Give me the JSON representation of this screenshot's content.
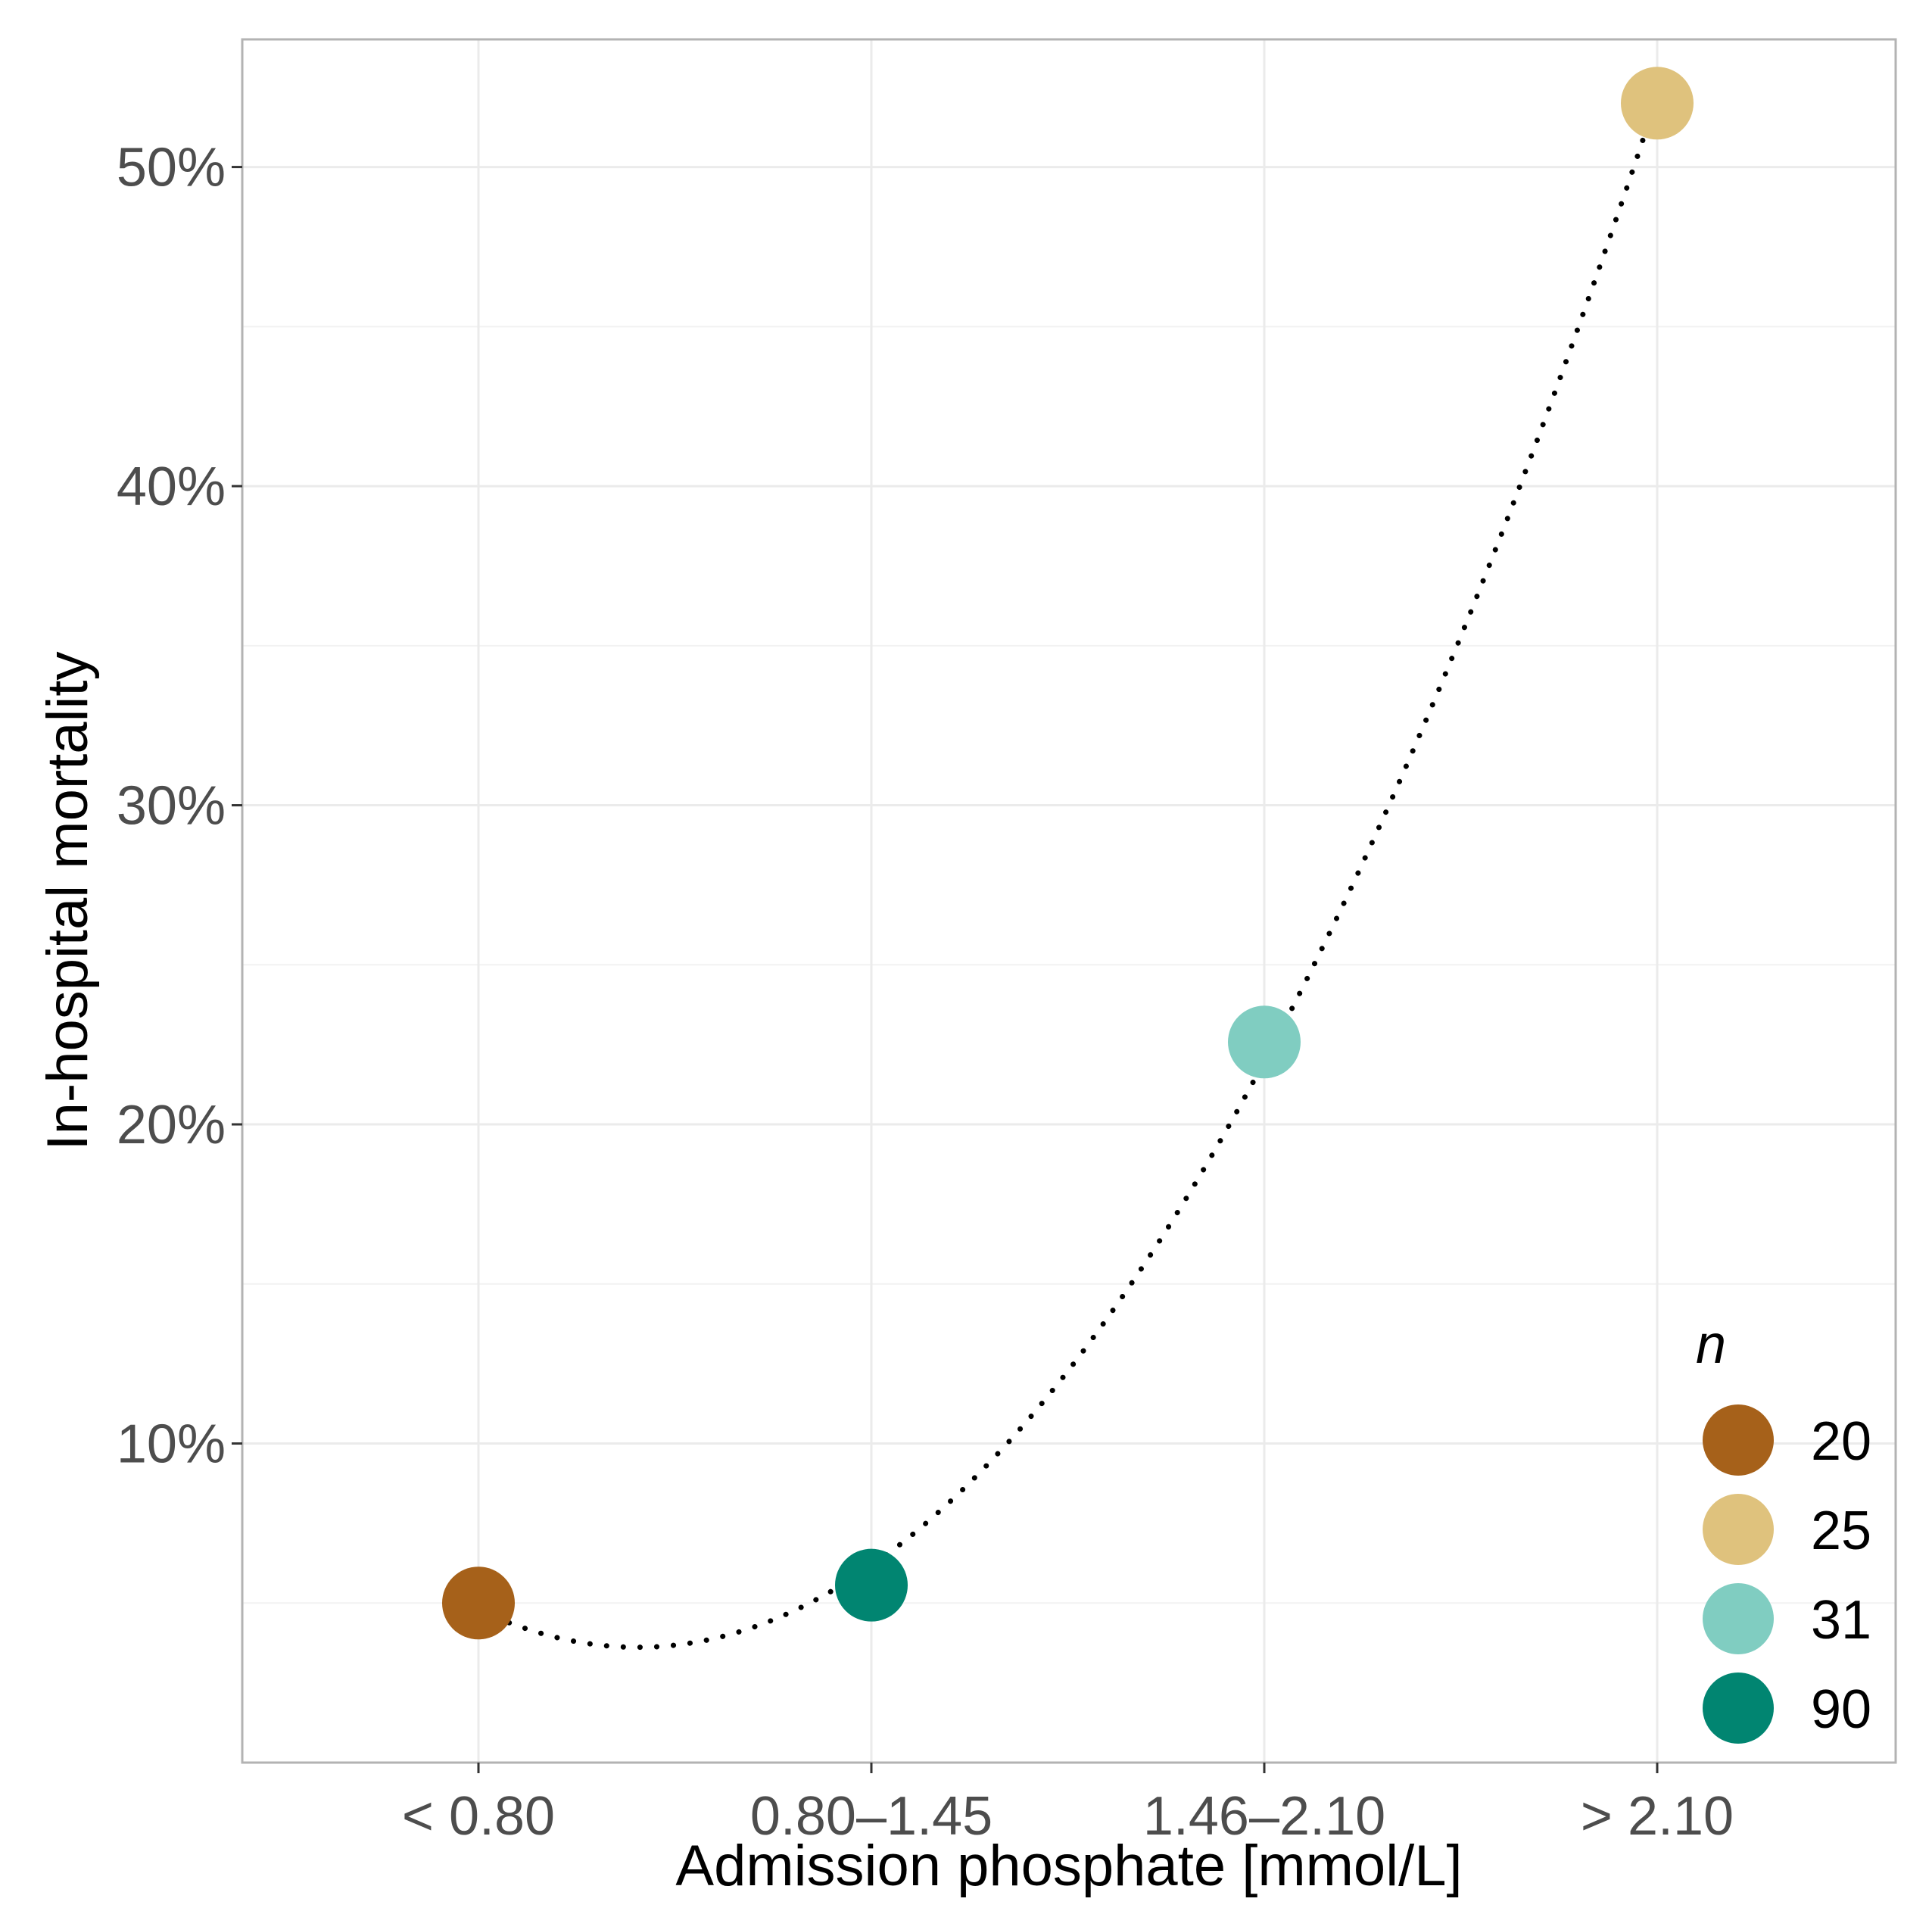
{
  "chart_data": {
    "type": "scatter",
    "title": "",
    "xlabel": "Admission phosphate [mmol/L]",
    "ylabel": "In-hospital mortality",
    "categories": [
      "< 0.80",
      "0.80–1.45",
      "1.46–2.10",
      "> 2.10"
    ],
    "ylim": [
      0,
      54
    ],
    "yticks": [
      10,
      20,
      30,
      40,
      50
    ],
    "ytick_labels": [
      "10%",
      "20%",
      "30%",
      "40%",
      "50%"
    ],
    "grid": true,
    "points": [
      {
        "category": "< 0.80",
        "value": 5.0,
        "n": "20",
        "color": "#a6611a"
      },
      {
        "category": "0.80–1.45",
        "value": 5.56,
        "n": "90",
        "color": "#018571"
      },
      {
        "category": "1.46–2.10",
        "value": 22.58,
        "n": "31",
        "color": "#80cdc1"
      },
      {
        "category": "> 2.10",
        "value": 52.0,
        "n": "25",
        "color": "#dfc27d"
      }
    ],
    "trend": {
      "style": "dotted",
      "color": "#000000",
      "shape": "quadratic"
    },
    "legend": {
      "title": "n",
      "position": "bottom-right",
      "entries": [
        {
          "label": "20",
          "color": "#a6611a"
        },
        {
          "label": "25",
          "color": "#dfc27d"
        },
        {
          "label": "31",
          "color": "#80cdc1"
        },
        {
          "label": "90",
          "color": "#018571"
        }
      ]
    }
  }
}
